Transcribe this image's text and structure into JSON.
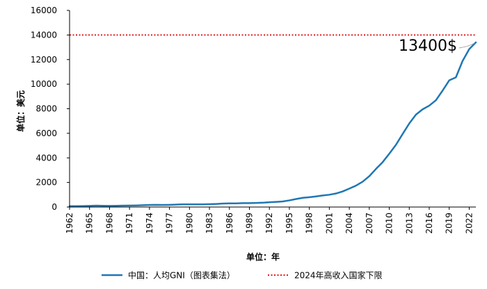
{
  "chart_data": {
    "type": "line",
    "xlabel": "单位：年",
    "ylabel": "单位：美元",
    "ylim": [
      0,
      16000
    ],
    "yticks": [
      0,
      2000,
      4000,
      6000,
      8000,
      10000,
      12000,
      14000,
      16000
    ],
    "xlim": [
      1962,
      2023
    ],
    "xticks": [
      1962,
      1965,
      1968,
      1971,
      1974,
      1977,
      1980,
      1983,
      1986,
      1989,
      1992,
      1995,
      1998,
      2001,
      2004,
      2007,
      2010,
      2013,
      2016,
      2019,
      2022
    ],
    "grid": false,
    "legend_position": "bottom",
    "series": [
      {
        "name": "中国：人均GNI（图表集法）",
        "color": "#1f77b4",
        "x": [
          1962,
          1963,
          1964,
          1965,
          1966,
          1967,
          1968,
          1969,
          1970,
          1971,
          1972,
          1973,
          1974,
          1975,
          1976,
          1977,
          1978,
          1979,
          1980,
          1981,
          1982,
          1983,
          1984,
          1985,
          1986,
          1987,
          1988,
          1989,
          1990,
          1991,
          1992,
          1993,
          1994,
          1995,
          1996,
          1997,
          1998,
          1999,
          2000,
          2001,
          2002,
          2003,
          2004,
          2005,
          2006,
          2007,
          2008,
          2009,
          2010,
          2011,
          2012,
          2013,
          2014,
          2015,
          2016,
          2017,
          2018,
          2019,
          2020,
          2021,
          2022,
          2023
        ],
        "values": [
          70,
          70,
          80,
          90,
          110,
          100,
          90,
          100,
          110,
          120,
          130,
          150,
          170,
          180,
          170,
          180,
          200,
          220,
          220,
          220,
          220,
          230,
          250,
          280,
          300,
          300,
          320,
          320,
          330,
          350,
          390,
          420,
          450,
          540,
          650,
          750,
          800,
          860,
          940,
          1000,
          1100,
          1270,
          1500,
          1740,
          2060,
          2510,
          3100,
          3650,
          4340,
          5060,
          5940,
          6800,
          7520,
          7950,
          8250,
          8690,
          9470,
          10310,
          10550,
          11880,
          12850,
          13400
        ]
      },
      {
        "name": "2024年高收入国家下限",
        "color": "#e31a1c",
        "dashed": true,
        "x": [
          1962,
          2023
        ],
        "values": [
          14000,
          14000
        ]
      }
    ],
    "annotations": [
      {
        "text": "13400$",
        "x": 2023,
        "y": 13400
      }
    ]
  }
}
